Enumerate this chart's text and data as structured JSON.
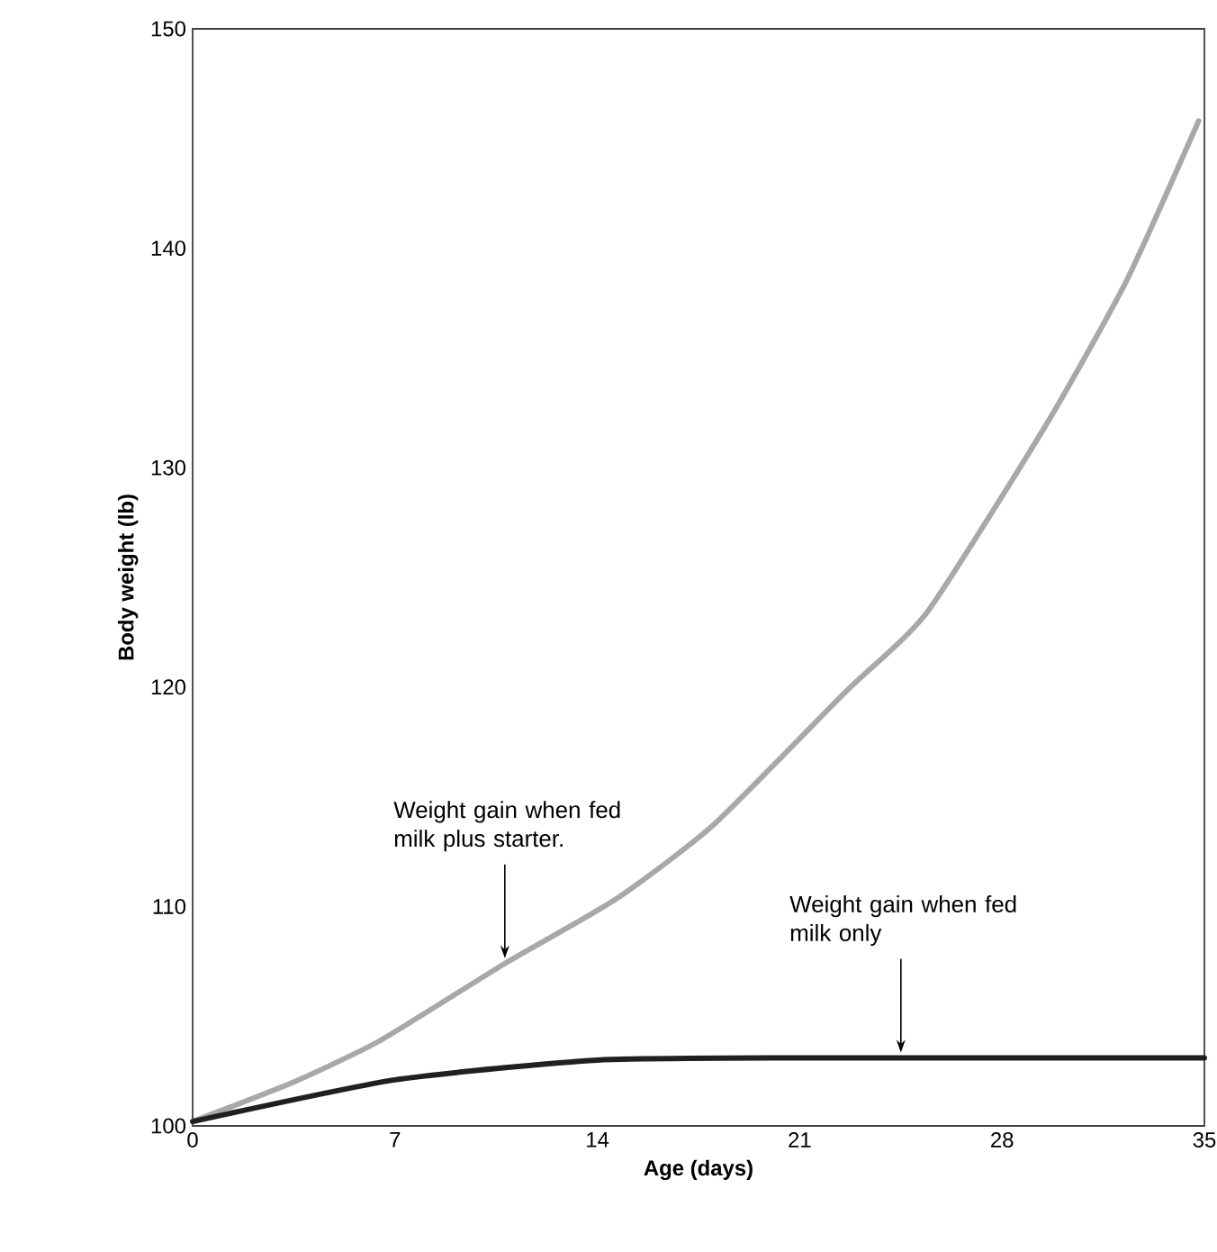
{
  "chart_data": {
    "type": "line",
    "xlabel": "Age (days)",
    "ylabel": "Body weight (lb)",
    "xlim": [
      0,
      35
    ],
    "ylim": [
      100,
      150
    ],
    "xticks": [
      0,
      7,
      14,
      21,
      28,
      35
    ],
    "yticks": [
      100,
      110,
      120,
      130,
      140,
      150
    ],
    "grid": false,
    "marker": "none",
    "line_style": "solid",
    "series": [
      {
        "color": "#a6a8ab",
        "x": [
          0,
          3.5,
          6.5,
          10.8,
          14.6,
          18,
          22.6,
          25.4,
          29.5,
          32.3,
          34.8
        ],
        "values": [
          100.2,
          102,
          103.9,
          107.4,
          110.3,
          113.7,
          119.8,
          123.4,
          131.9,
          138.5,
          145.8
        ]
      },
      {
        "color": "#231f20",
        "x": [
          0,
          7,
          14,
          21,
          35
        ],
        "values": [
          100.2,
          102.1,
          103,
          103.1,
          103.1
        ]
      }
    ],
    "annotations": [
      {
        "text": "Weight gain when fed milk plus starter.",
        "x": 10.8,
        "y": 107.4
      },
      {
        "text": "Weight gain when fed milk only",
        "x": 24.5,
        "y": 103.1
      }
    ]
  }
}
